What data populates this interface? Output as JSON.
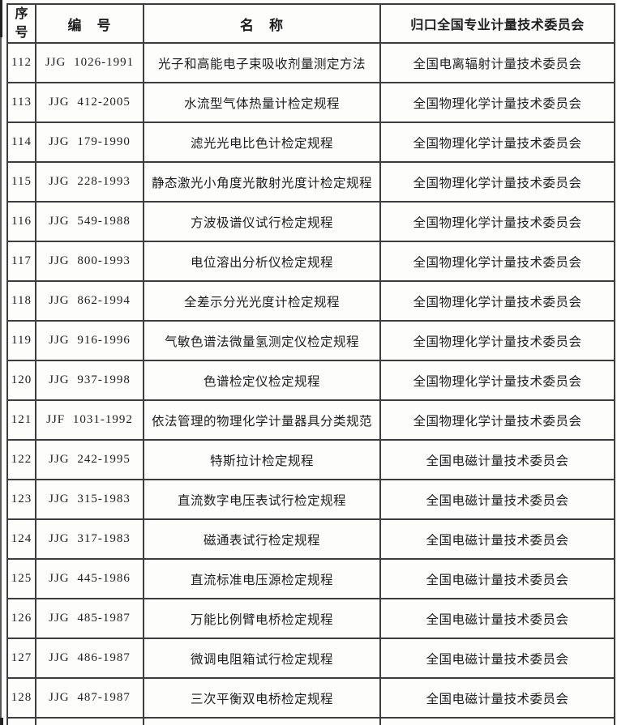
{
  "colors": {
    "border": "#3d3d3d",
    "text": "#1e1e1e",
    "background": "#fdfdfc"
  },
  "table": {
    "columns": [
      {
        "label": "序号"
      },
      {
        "label": "编　号"
      },
      {
        "label": "名　称"
      },
      {
        "label": "归口全国专业计量技术委员会"
      }
    ],
    "rows": [
      {
        "index": "112",
        "code": "JJG 1026-1991",
        "name": "光子和高能电子束吸收剂量测定方法",
        "committee": "全国电离辐射计量技术委员会"
      },
      {
        "index": "113",
        "code": "JJG 412-2005",
        "name": "水流型气体热量计检定规程",
        "committee": "全国物理化学计量技术委员会"
      },
      {
        "index": "114",
        "code": "JJG 179-1990",
        "name": "滤光光电比色计检定规程",
        "committee": "全国物理化学计量技术委员会"
      },
      {
        "index": "115",
        "code": "JJG 228-1993",
        "name": "静态激光小角度光散射光度计检定规程",
        "committee": "全国物理化学计量技术委员会"
      },
      {
        "index": "116",
        "code": "JJG 549-1988",
        "name": "方波极谱仪试行检定规程",
        "committee": "全国物理化学计量技术委员会"
      },
      {
        "index": "117",
        "code": "JJG 800-1993",
        "name": "电位溶出分析仪检定规程",
        "committee": "全国物理化学计量技术委员会"
      },
      {
        "index": "118",
        "code": "JJG 862-1994",
        "name": "全差示分光光度计检定规程",
        "committee": "全国物理化学计量技术委员会"
      },
      {
        "index": "119",
        "code": "JJG 916-1996",
        "name": "气敏色谱法微量氢测定仪检定规程",
        "committee": "全国物理化学计量技术委员会"
      },
      {
        "index": "120",
        "code": "JJG 937-1998",
        "name": "色谱检定仪检定规程",
        "committee": "全国物理化学计量技术委员会"
      },
      {
        "index": "121",
        "code": "JJF 1031-1992",
        "name": "依法管理的物理化学计量器具分类规范",
        "committee": "全国物理化学计量技术委员会"
      },
      {
        "index": "122",
        "code": "JJG 242-1995",
        "name": "特斯拉计检定规程",
        "committee": "全国电磁计量技术委员会"
      },
      {
        "index": "123",
        "code": "JJG 315-1983",
        "name": "直流数字电压表试行检定规程",
        "committee": "全国电磁计量技术委员会"
      },
      {
        "index": "124",
        "code": "JJG 317-1983",
        "name": "磁通表试行检定规程",
        "committee": "全国电磁计量技术委员会"
      },
      {
        "index": "125",
        "code": "JJG 445-1986",
        "name": "直流标准电压源检定规程",
        "committee": "全国电磁计量技术委员会"
      },
      {
        "index": "126",
        "code": "JJG 485-1987",
        "name": "万能比例臂电桥检定规程",
        "committee": "全国电磁计量技术委员会"
      },
      {
        "index": "127",
        "code": "JJG 486-1987",
        "name": "微调电阻箱试行检定规程",
        "committee": "全国电磁计量技术委员会"
      },
      {
        "index": "128",
        "code": "JJG 487-1987",
        "name": "三次平衡双电桥检定规程",
        "committee": "全国电磁计量技术委员会"
      }
    ]
  }
}
